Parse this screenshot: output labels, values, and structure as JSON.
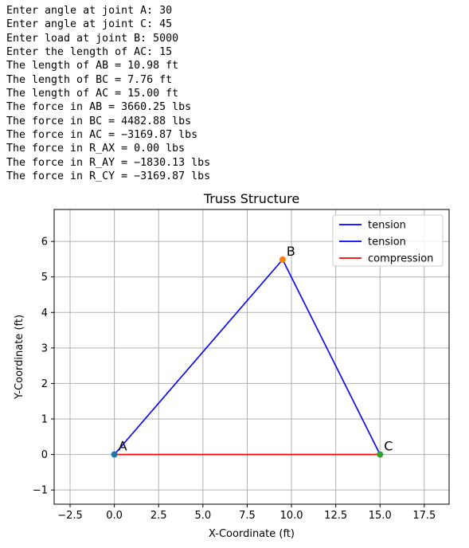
{
  "console_lines": [
    "Enter angle at joint A: 30",
    "Enter angle at joint C: 45",
    "Enter load at joint B: 5000",
    "Enter the length of AC: 15",
    "The length of AB = 10.98 ft",
    "The length of BC = 7.76 ft",
    "The length of AC = 15.00 ft",
    "The force in AB = 3660.25 lbs",
    "The force in BC = 4482.88 lbs",
    "The force in AC = −3169.87 lbs",
    "The force in R_AX = 0.00 lbs",
    "The force in R_AY = −1830.13 lbs",
    "The force in R_CY = −3169.87 lbs"
  ],
  "chart_data": {
    "type": "line",
    "title": "Truss Structure",
    "xlabel": "X-Coordinate (ft)",
    "ylabel": "Y-Coordinate (ft)",
    "xlim": [
      -3.4,
      18.9
    ],
    "ylim": [
      -1.4,
      6.9
    ],
    "xticks": [
      -2.5,
      0.0,
      2.5,
      5.0,
      7.5,
      10.0,
      12.5,
      15.0,
      17.5
    ],
    "xtick_labels": [
      "−2.5",
      "0.0",
      "2.5",
      "5.0",
      "7.5",
      "10.0",
      "12.5",
      "15.0",
      "17.5"
    ],
    "yticks": [
      -1,
      0,
      1,
      2,
      3,
      4,
      5,
      6
    ],
    "ytick_labels": [
      "−1",
      "0",
      "1",
      "2",
      "3",
      "4",
      "5",
      "6"
    ],
    "grid": true,
    "legend_position": "top-right",
    "series": [
      {
        "name": "tension",
        "color": "#0000ff",
        "x": [
          0.0,
          9.5
        ],
        "y": [
          0.0,
          5.49
        ]
      },
      {
        "name": "tension",
        "color": "#0000ff",
        "x": [
          9.5,
          15.0
        ],
        "y": [
          5.49,
          0.0
        ]
      },
      {
        "name": "compression",
        "color": "#ff0000",
        "x": [
          0.0,
          15.0
        ],
        "y": [
          0.0,
          0.0
        ]
      }
    ],
    "joints": [
      {
        "label": "A",
        "x": 0.0,
        "y": 0.0,
        "color": "#1f77b4"
      },
      {
        "label": "B",
        "x": 9.5,
        "y": 5.49,
        "color": "#ff7f0e"
      },
      {
        "label": "C",
        "x": 15.0,
        "y": 0.0,
        "color": "#2ca02c"
      }
    ]
  }
}
